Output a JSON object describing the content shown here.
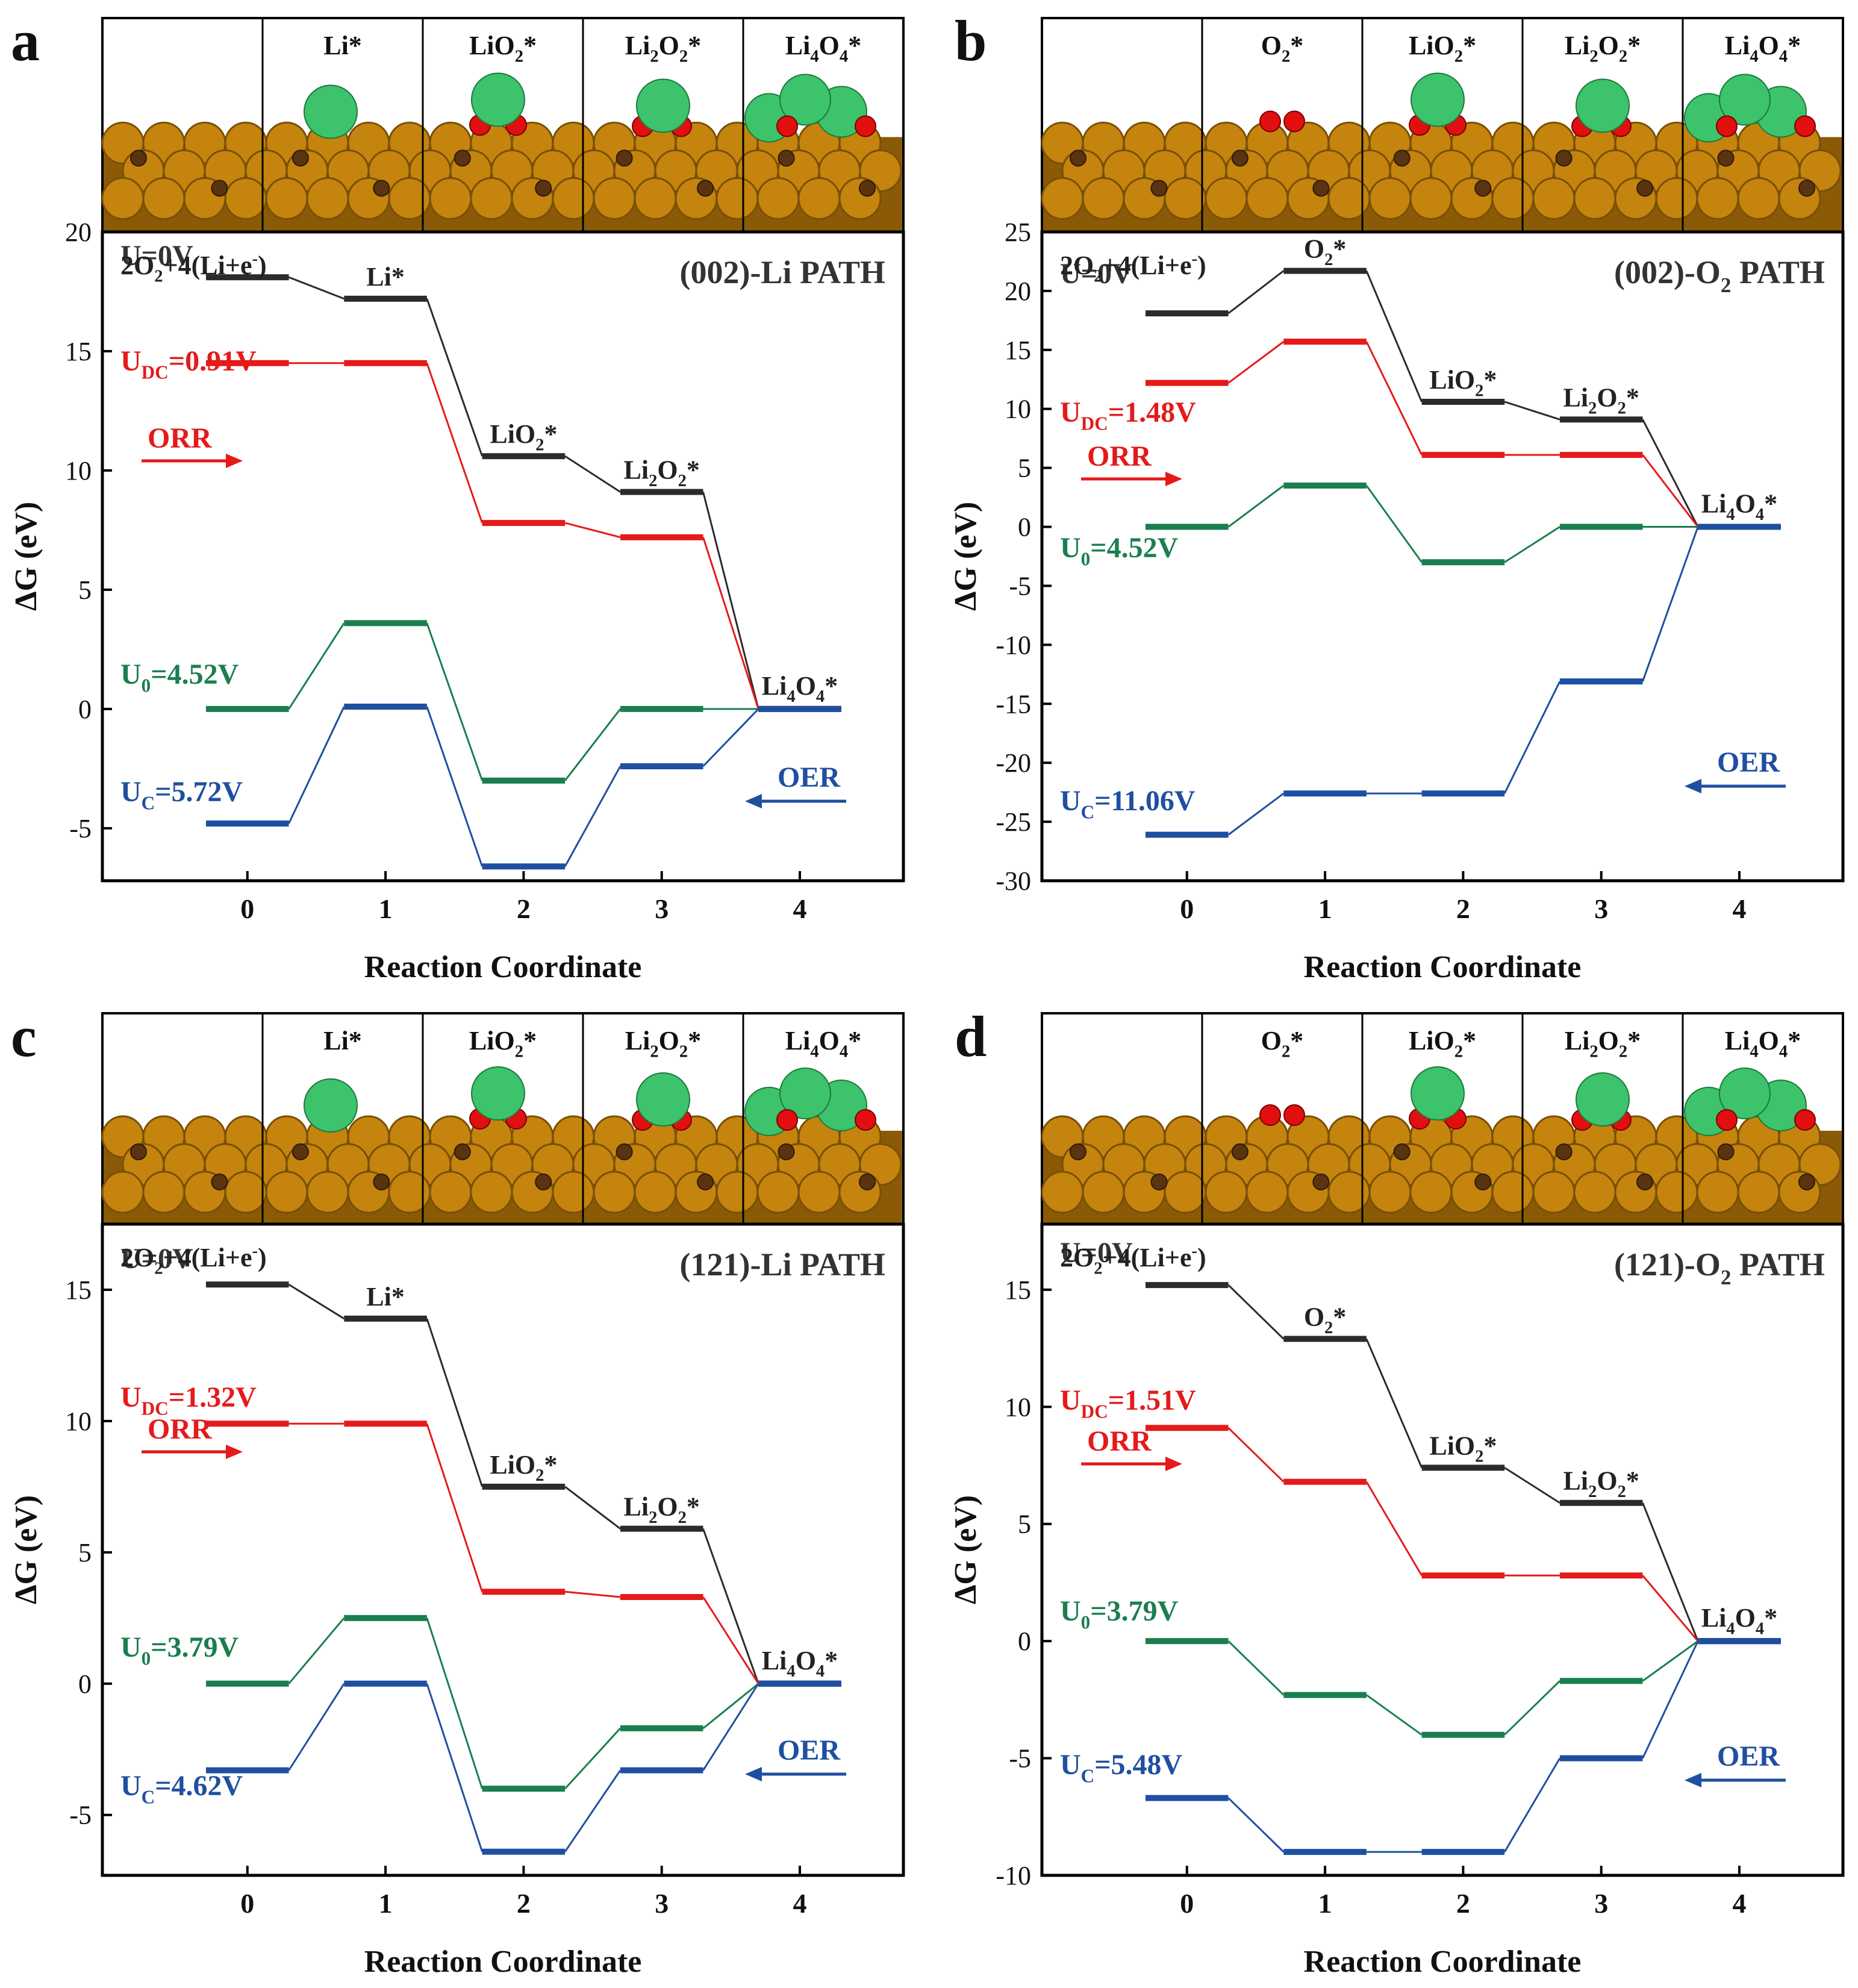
{
  "colors": {
    "black": "#2b2b2b",
    "red": "#e51a1a",
    "green": "#1a7f4e",
    "blue": "#1f4fa0",
    "copper": "#c4840e",
    "lithium": "#3cc36b",
    "oxygen": "#e10f0f",
    "carbon": "#5a3410"
  },
  "panels": [
    {
      "letter": "a",
      "title": "(002)-Li PATH",
      "strip_labels": [
        "",
        "Li*",
        "LiO2*",
        "Li2O2*",
        "Li4O4*"
      ],
      "state_labels": [
        "2O2+4(Li+e-)",
        "Li*",
        "LiO2*",
        "Li2O2*",
        "Li4O4*"
      ],
      "chart_data": {
        "type": "line",
        "xlabel": "Reaction Coordinate",
        "ylabel": "ΔG (eV)",
        "x": [
          0,
          1,
          2,
          3,
          4
        ],
        "xlim": [
          -1.05,
          4.75
        ],
        "ylim": [
          -7.2,
          20
        ],
        "yticks": [
          -5,
          0,
          5,
          10,
          15,
          20
        ],
        "series": [
          {
            "name": "U=0V",
            "color": "black",
            "values": [
              18.1,
              17.2,
              10.6,
              9.1,
              0
            ]
          },
          {
            "name": "UDC=0.91V",
            "color": "red",
            "values": [
              14.5,
              14.5,
              7.8,
              7.2,
              0
            ]
          },
          {
            "name": "U0=4.52V",
            "color": "green",
            "values": [
              0,
              3.6,
              -3.0,
              0,
              0
            ]
          },
          {
            "name": "UC=5.72V",
            "color": "blue",
            "values": [
              -4.8,
              0.1,
              -6.6,
              -2.4,
              0
            ]
          }
        ],
        "legend_labels": [
          "U=0V",
          "UDC=0.91V",
          "U0=4.52V",
          "UC=5.72V"
        ],
        "annotations": [
          "ORR",
          "OER"
        ]
      }
    },
    {
      "letter": "b",
      "title": "(002)-O2 PATH",
      "strip_labels": [
        "",
        "O2*",
        "LiO2*",
        "Li2O2*",
        "Li4O4*"
      ],
      "state_labels": [
        "2O2+4(Li+e-)",
        "O2*",
        "LiO2*",
        "Li2O2*",
        "Li4O4*"
      ],
      "chart_data": {
        "type": "line",
        "xlabel": "Reaction Coordinate",
        "ylabel": "ΔG (eV)",
        "x": [
          0,
          1,
          2,
          3,
          4
        ],
        "xlim": [
          -1.05,
          4.75
        ],
        "ylim": [
          -30,
          25
        ],
        "yticks": [
          -30,
          -25,
          -20,
          -15,
          -10,
          -5,
          0,
          5,
          10,
          15,
          20,
          25
        ],
        "series": [
          {
            "name": "U=0V",
            "color": "black",
            "values": [
              18.1,
              21.7,
              10.6,
              9.1,
              0
            ]
          },
          {
            "name": "UDC=1.48V",
            "color": "red",
            "values": [
              12.2,
              15.7,
              6.1,
              6.1,
              0
            ]
          },
          {
            "name": "U0=4.52V",
            "color": "green",
            "values": [
              0,
              3.5,
              -3.0,
              0,
              0
            ]
          },
          {
            "name": "UC=11.06V",
            "color": "blue",
            "values": [
              -26.1,
              -22.6,
              -22.6,
              -13.1,
              0
            ]
          }
        ],
        "legend_labels": [
          "U=0V",
          "UDC=1.48V",
          "U0=4.52V",
          "UC=11.06V"
        ],
        "annotations": [
          "ORR",
          "OER"
        ]
      }
    },
    {
      "letter": "c",
      "title": "(121)-Li PATH",
      "strip_labels": [
        "",
        "Li*",
        "LiO2*",
        "Li2O2*",
        "Li4O4*"
      ],
      "state_labels": [
        "2O2+4(Li+e-)",
        "Li*",
        "LiO2*",
        "Li2O2*",
        "Li4O4*"
      ],
      "chart_data": {
        "type": "line",
        "xlabel": "Reaction Coordinate",
        "ylabel": "ΔG (eV)",
        "x": [
          0,
          1,
          2,
          3,
          4
        ],
        "xlim": [
          -1.05,
          4.75
        ],
        "ylim": [
          -7.3,
          17.5
        ],
        "yticks": [
          -5,
          0,
          5,
          10,
          15
        ],
        "series": [
          {
            "name": "U=0V",
            "color": "black",
            "values": [
              15.2,
              13.9,
              7.5,
              5.9,
              0
            ]
          },
          {
            "name": "UDC=1.32V",
            "color": "red",
            "values": [
              9.9,
              9.9,
              3.5,
              3.3,
              0
            ]
          },
          {
            "name": "U0=3.79V",
            "color": "green",
            "values": [
              0,
              2.5,
              -4.0,
              -1.7,
              0
            ]
          },
          {
            "name": "UC=4.62V",
            "color": "blue",
            "values": [
              -3.3,
              0,
              -6.4,
              -3.3,
              0
            ]
          }
        ],
        "legend_labels": [
          "U=0V",
          "UDC=1.32V",
          "U0=3.79V",
          "UC=4.62V"
        ],
        "annotations": [
          "ORR",
          "OER"
        ]
      }
    },
    {
      "letter": "d",
      "title": "(121)-O2 PATH",
      "strip_labels": [
        "",
        "O2*",
        "LiO2*",
        "Li2O2*",
        "Li4O4*"
      ],
      "state_labels": [
        "2O2+4(Li+e-)",
        "O2*",
        "LiO2*",
        "Li2O2*",
        "Li4O4*"
      ],
      "chart_data": {
        "type": "line",
        "xlabel": "Reaction Coordinate",
        "ylabel": "ΔG (eV)",
        "x": [
          0,
          1,
          2,
          3,
          4
        ],
        "xlim": [
          -1.05,
          4.75
        ],
        "ylim": [
          -10,
          17.8
        ],
        "yticks": [
          -10,
          -5,
          0,
          5,
          10,
          15
        ],
        "series": [
          {
            "name": "U=0V",
            "color": "black",
            "values": [
              15.2,
              12.9,
              7.4,
              5.9,
              0
            ]
          },
          {
            "name": "UDC=1.51V",
            "color": "red",
            "values": [
              9.1,
              6.8,
              2.8,
              2.8,
              0
            ]
          },
          {
            "name": "U0=3.79V",
            "color": "green",
            "values": [
              0,
              -2.3,
              -4.0,
              -1.7,
              0
            ]
          },
          {
            "name": "UC=5.48V",
            "color": "blue",
            "values": [
              -6.7,
              -9.0,
              -9.0,
              -5.0,
              0
            ]
          }
        ],
        "legend_labels": [
          "U=0V",
          "UDC=1.51V",
          "U0=3.79V",
          "UC=5.48V"
        ],
        "annotations": [
          "ORR",
          "OER"
        ]
      }
    }
  ]
}
